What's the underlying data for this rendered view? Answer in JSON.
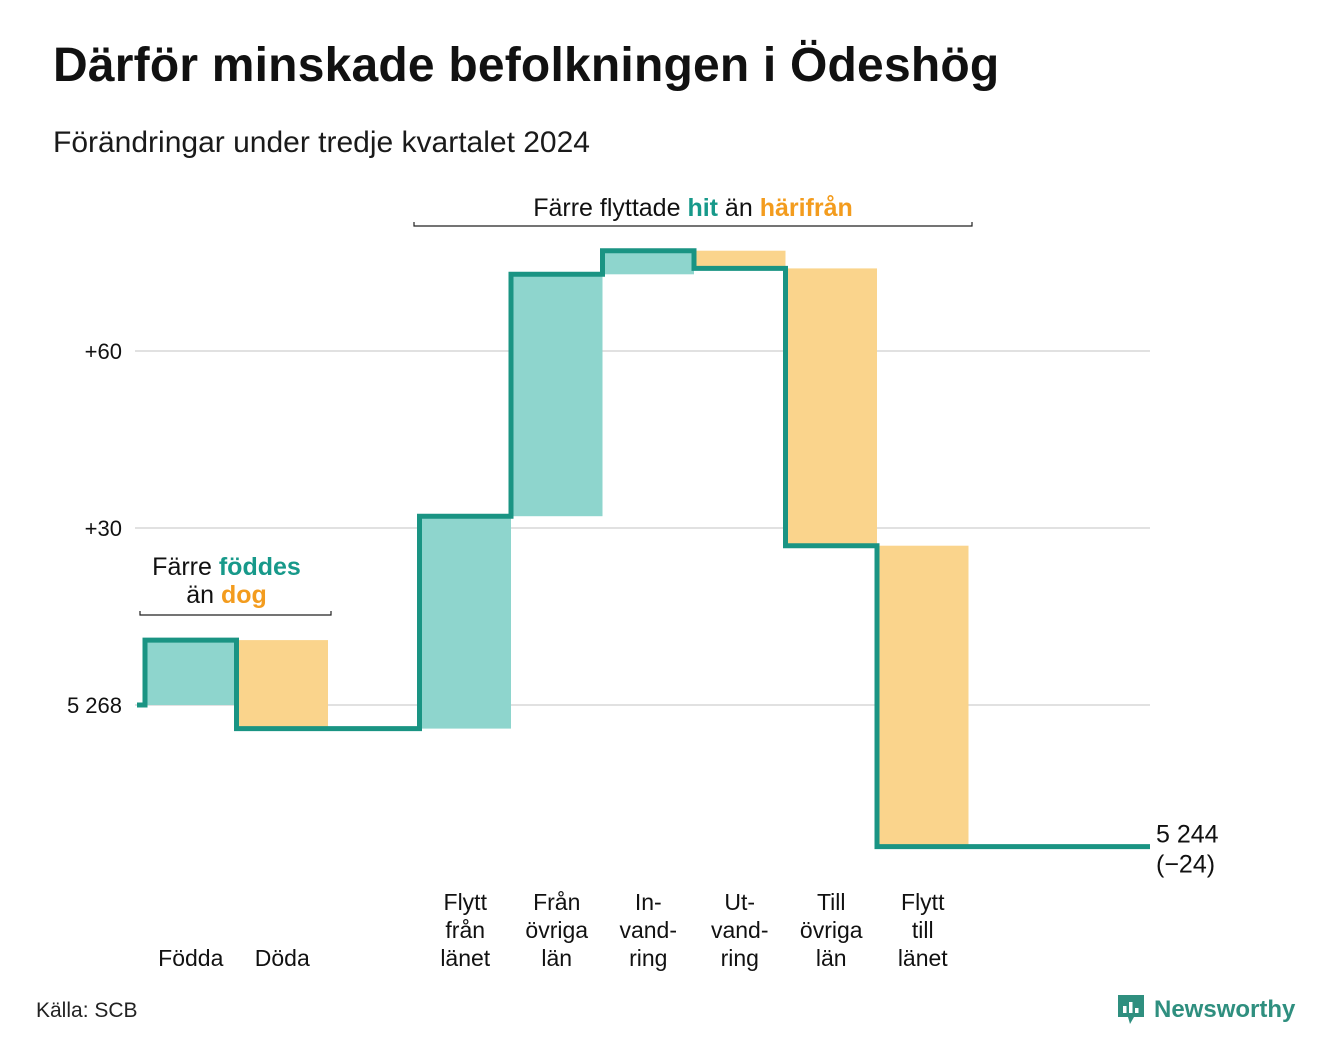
{
  "title": "Därför minskade befolkningen i Ödeshög",
  "subtitle": "Förändringar under tredje kvartalet 2024",
  "source": "Källa: SCB",
  "brand": "Newsworthy",
  "colors": {
    "inflow": "#8ed5cd",
    "outflow": "#fad48c",
    "line": "#1a9483",
    "grid": "#e1e1e1",
    "highlight_in": "#17998a",
    "highlight_out": "#f39c1e"
  },
  "annotations": {
    "births": {
      "pre": "Färre",
      "hl_in": "föddes",
      "mid": "än",
      "hl_out": "dog"
    },
    "migration": {
      "pre": "Färre flyttade",
      "hl_in": "hit",
      "mid": "än",
      "hl_out": "härifrån"
    }
  },
  "chart_data": {
    "type": "waterfall",
    "start_value": 5268,
    "y_ticks": [
      {
        "value": 0,
        "label": "5 268"
      },
      {
        "value": 30,
        "label": "+30"
      },
      {
        "value": 60,
        "label": "+60"
      }
    ],
    "categories": [
      {
        "label": [
          "Födda"
        ],
        "change": 11,
        "kind": "in"
      },
      {
        "label": [
          "Döda"
        ],
        "change": -15,
        "kind": "out"
      },
      {
        "label": [
          ""
        ],
        "change": 0,
        "kind": "none"
      },
      {
        "label": [
          "Flytt",
          "från",
          "länet"
        ],
        "change": 36,
        "kind": "in"
      },
      {
        "label": [
          "Från",
          "övriga",
          "län"
        ],
        "change": 41,
        "kind": "in"
      },
      {
        "label": [
          "In-",
          "vand-",
          "ring"
        ],
        "change": 4,
        "kind": "in"
      },
      {
        "label": [
          "Ut-",
          "vand-",
          "ring"
        ],
        "change": -3,
        "kind": "out"
      },
      {
        "label": [
          "Till",
          "övriga",
          "län"
        ],
        "change": -47,
        "kind": "out"
      },
      {
        "label": [
          "Flytt",
          "till",
          "länet"
        ],
        "change": -51,
        "kind": "out"
      }
    ],
    "end_value_label": "5 244",
    "end_change_label": "(−24)"
  }
}
